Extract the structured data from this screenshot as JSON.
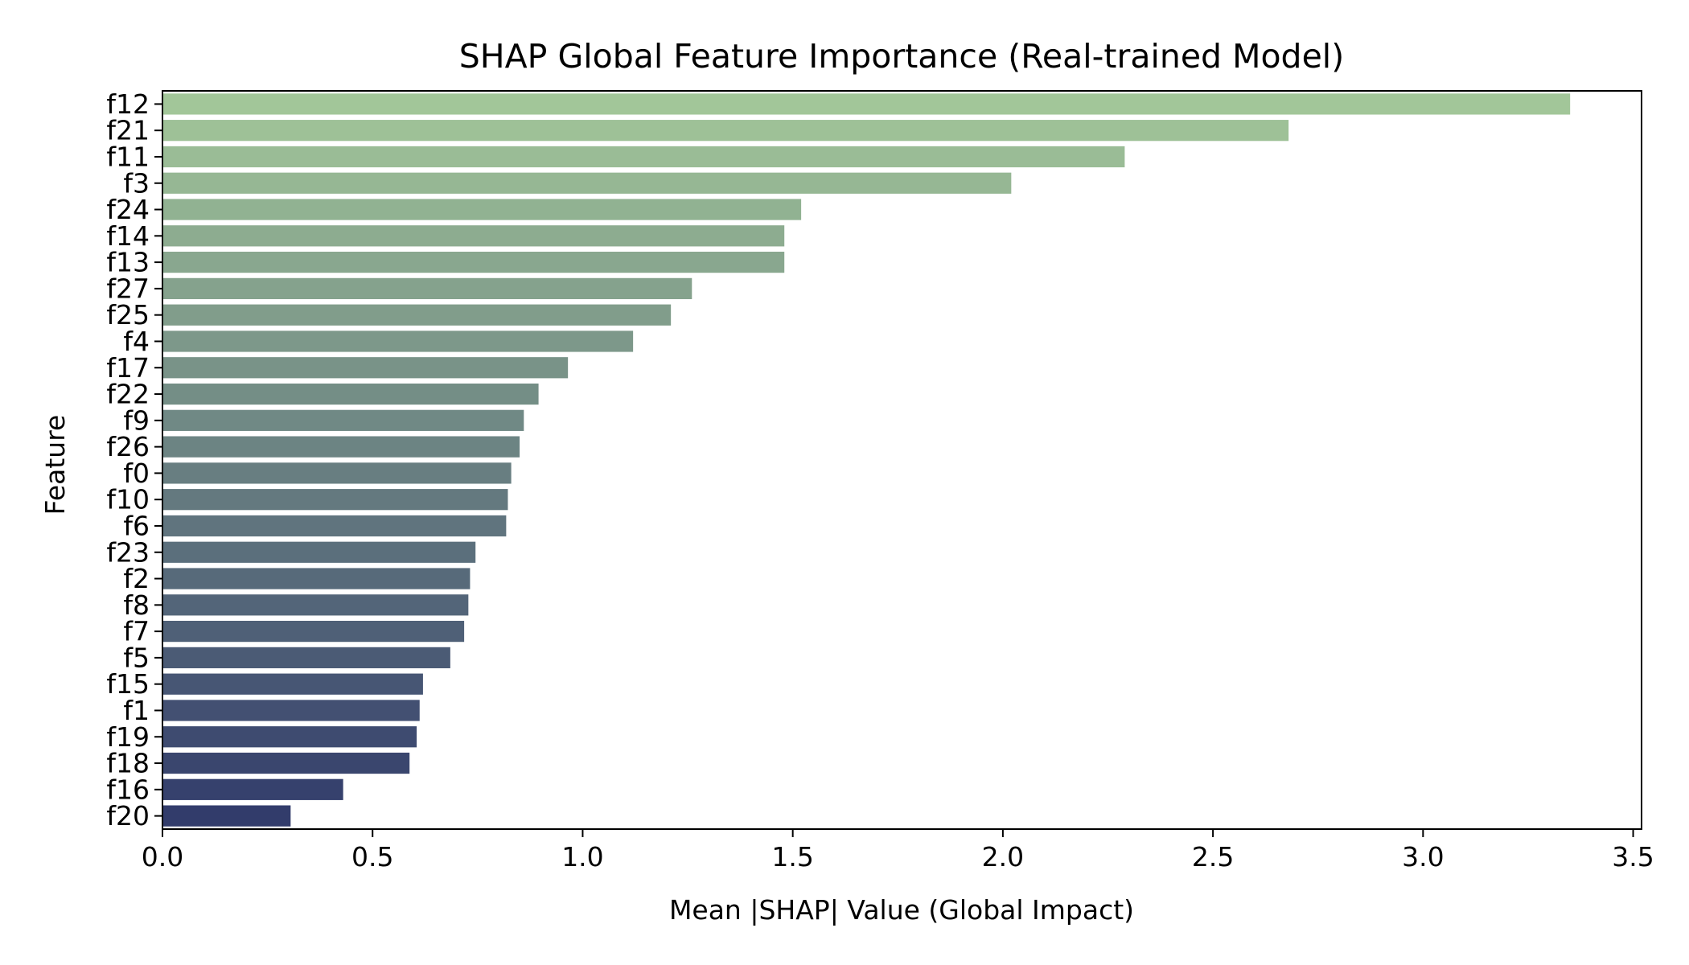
{
  "chart_data": {
    "type": "bar",
    "orientation": "horizontal",
    "title": "SHAP Global Feature Importance (Real-trained Model)",
    "xlabel": "Mean |SHAP| Value (Global Impact)",
    "ylabel": "Feature",
    "xlim": [
      0,
      3.52
    ],
    "xticks": [
      "0.0",
      "0.5",
      "1.0",
      "1.5",
      "2.0",
      "2.5",
      "3.0",
      "3.5"
    ],
    "grid": false,
    "legend": "none",
    "colormap": "crest",
    "color_start": "#a2c699",
    "color_end": "#323c6b",
    "categories": [
      "f12",
      "f21",
      "f11",
      "f3",
      "f24",
      "f14",
      "f13",
      "f27",
      "f25",
      "f4",
      "f17",
      "f22",
      "f9",
      "f26",
      "f0",
      "f10",
      "f6",
      "f23",
      "f2",
      "f8",
      "f7",
      "f5",
      "f15",
      "f1",
      "f19",
      "f18",
      "f16",
      "f20"
    ],
    "values": [
      3.35,
      2.68,
      2.29,
      2.02,
      1.52,
      1.48,
      1.48,
      1.26,
      1.21,
      1.12,
      0.965,
      0.895,
      0.86,
      0.85,
      0.83,
      0.822,
      0.818,
      0.745,
      0.732,
      0.728,
      0.718,
      0.685,
      0.62,
      0.612,
      0.605,
      0.588,
      0.43,
      0.305
    ]
  }
}
